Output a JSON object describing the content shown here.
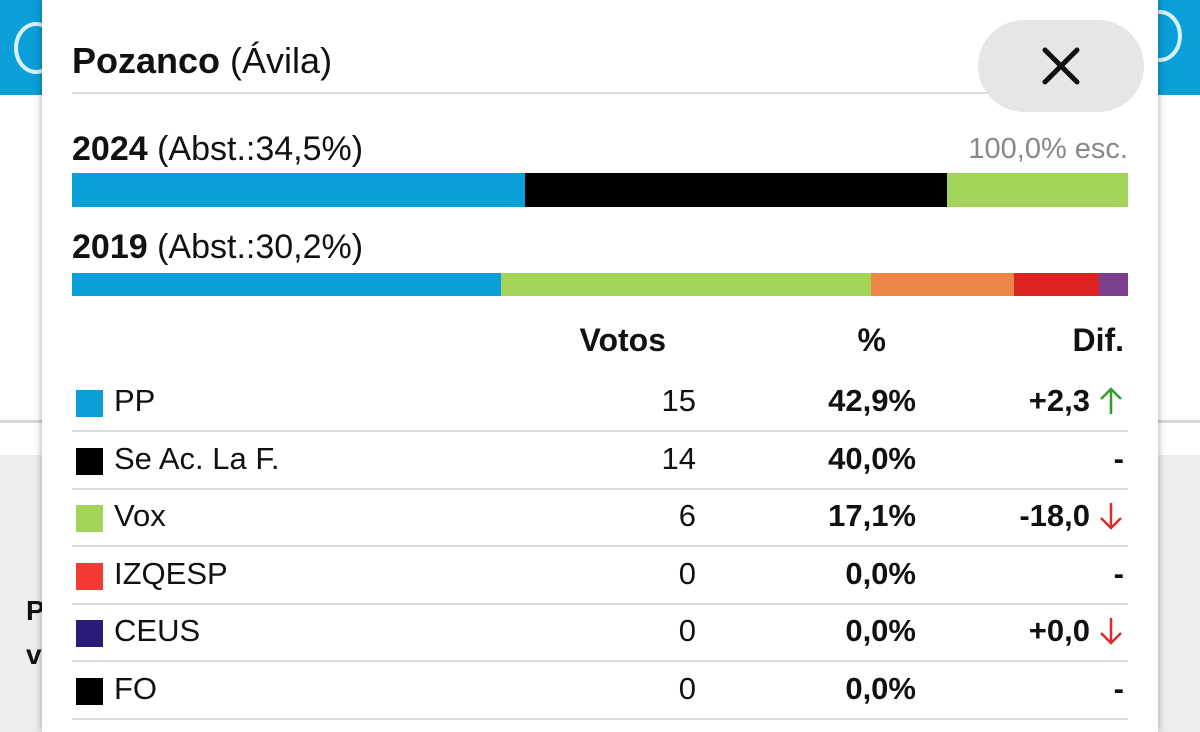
{
  "colors": {
    "pp": "#0a9fd8",
    "se_ac": "#000000",
    "vox": "#a3d45a",
    "izqesp": "#f43a34",
    "ceus": "#2a1b78",
    "fo": "#000000",
    "orange": "#ec8548",
    "red": "#dd2222",
    "purple": "#7b3f8c",
    "arrow_up": "#2e9e2e",
    "arrow_down": "#dd2b2b"
  },
  "popup": {
    "town": "Pozanco",
    "province": "(Ávila)",
    "close_icon": "close-icon",
    "escrutado": "100,0% esc."
  },
  "elections": {
    "current": {
      "year": "2024",
      "abstention": "(Abst.:34,5%)",
      "segments": [
        {
          "color": "#0a9fd8",
          "share": 42.9
        },
        {
          "color": "#000000",
          "share": 40.0
        },
        {
          "color": "#a3d45a",
          "share": 17.1
        }
      ]
    },
    "previous": {
      "year": "2019",
      "abstention": "(Abst.:30,2%)",
      "segments": [
        {
          "color": "#0a9fd8",
          "share": 40.6
        },
        {
          "color": "#a3d45a",
          "share": 35.1
        },
        {
          "color": "#ec8548",
          "share": 13.5
        },
        {
          "color": "#dd2222",
          "share": 8.1
        },
        {
          "color": "#7b3f8c",
          "share": 2.7
        }
      ]
    }
  },
  "table": {
    "headers": {
      "votes": "Votos",
      "pct": "%",
      "dif": "Dif."
    },
    "rows": [
      {
        "party": "PP",
        "color": "#0a9fd8",
        "votes": "15",
        "pct": "42,9%",
        "dif": "+2,3",
        "trend": "up"
      },
      {
        "party": "Se Ac. La F.",
        "color": "#000000",
        "votes": "14",
        "pct": "40,0%",
        "dif": "-",
        "trend": ""
      },
      {
        "party": "Vox",
        "color": "#a3d45a",
        "votes": "6",
        "pct": "17,1%",
        "dif": "-18,0",
        "trend": "down"
      },
      {
        "party": "IZQESP",
        "color": "#f43a34",
        "votes": "0",
        "pct": "0,0%",
        "dif": "-",
        "trend": ""
      },
      {
        "party": "CEUS",
        "color": "#2a1b78",
        "votes": "0",
        "pct": "0,0%",
        "dif": "+0,0",
        "trend": "down"
      },
      {
        "party": "FO",
        "color": "#000000",
        "votes": "0",
        "pct": "0,0%",
        "dif": "-",
        "trend": ""
      }
    ]
  },
  "background": {
    "left_text_1": "P",
    "left_text_2": "v"
  }
}
